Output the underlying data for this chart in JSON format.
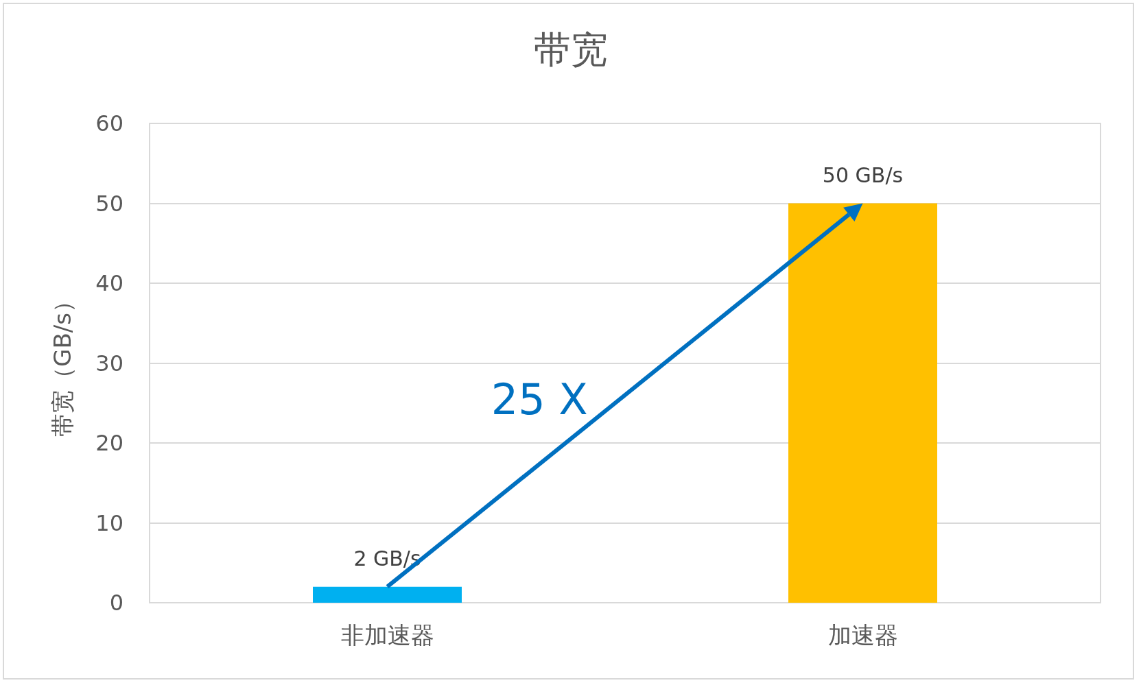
{
  "chart_data": {
    "type": "bar",
    "title": "带宽",
    "ylabel": "带宽（GB/s）",
    "categories": [
      "非加速器",
      "加速器"
    ],
    "values": [
      2,
      50
    ],
    "colors": [
      "#00b0f0",
      "#ffc000"
    ],
    "value_labels": [
      "2 GB/s",
      "50 GB/s"
    ],
    "ylim": [
      0,
      60
    ],
    "yticks": [
      0,
      10,
      20,
      30,
      40,
      50,
      60
    ],
    "grid": "y",
    "annotations": [
      "25 X"
    ]
  }
}
